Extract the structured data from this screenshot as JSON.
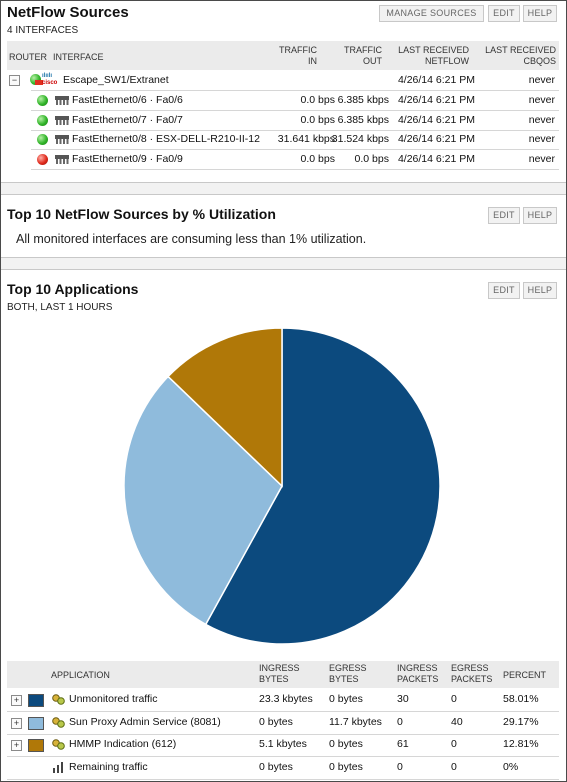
{
  "netflow": {
    "title": "NetFlow Sources",
    "subtitle": "4 INTERFACES",
    "buttons": {
      "manage": "MANAGE SOURCES",
      "edit": "EDIT",
      "help": "HELP"
    },
    "columns": {
      "router": "ROUTER",
      "interface": "INTERFACE",
      "traffic_in": [
        "TRAFFIC",
        "IN"
      ],
      "traffic_out": [
        "TRAFFIC",
        "OUT"
      ],
      "last_netflow": [
        "LAST RECEIVED",
        "NETFLOW"
      ],
      "last_cbqos": [
        "LAST RECEIVED",
        "CBQOS"
      ]
    },
    "node": {
      "vendor": "cisco",
      "label": "Escape_SW1/Extranet",
      "last_netflow": "4/26/14 6:21 PM",
      "last_cbqos": "never"
    },
    "interfaces": [
      {
        "status": "up",
        "label": "FastEthernet0/6 · Fa0/6",
        "in": "0.0 bps",
        "out": "6.385 kbps",
        "netflow": "4/26/14 6:21 PM",
        "cbqos": "never"
      },
      {
        "status": "up",
        "label": "FastEthernet0/7 · Fa0/7",
        "in": "0.0 bps",
        "out": "6.385 kbps",
        "netflow": "4/26/14 6:21 PM",
        "cbqos": "never"
      },
      {
        "status": "up",
        "label": "FastEthernet0/8 · ESX-DELL-R210-II-12",
        "in": "31.641 kbps",
        "out": "31.524 kbps",
        "netflow": "4/26/14 6:21 PM",
        "cbqos": "never"
      },
      {
        "status": "down",
        "label": "FastEthernet0/9 · Fa0/9",
        "in": "0.0 bps",
        "out": "0.0 bps",
        "netflow": "4/26/14 6:21 PM",
        "cbqos": "never"
      }
    ]
  },
  "utilization": {
    "title": "Top 10 NetFlow Sources by % Utilization",
    "buttons": {
      "edit": "EDIT",
      "help": "HELP"
    },
    "message": "All monitored interfaces are consuming less than 1% utilization."
  },
  "apps": {
    "title": "Top 10 Applications",
    "subtitle": "BOTH, LAST 1 HOURS",
    "buttons": {
      "edit": "EDIT",
      "help": "HELP"
    },
    "columns": {
      "application": "APPLICATION",
      "ingress_bytes": [
        "INGRESS",
        "BYTES"
      ],
      "egress_bytes": [
        "EGRESS",
        "BYTES"
      ],
      "ingress_packets": [
        "INGRESS",
        "PACKETS"
      ],
      "egress_packets": [
        "EGRESS",
        "PACKETS"
      ],
      "percent": "PERCENT"
    },
    "rows": [
      {
        "name": "Unmonitored traffic",
        "color": "#0c4a7e",
        "ib": "23.3 kbytes",
        "eb": "0 bytes",
        "ip": "30",
        "ep": "0",
        "pct": "58.01%"
      },
      {
        "name": "Sun Proxy Admin Service (8081)",
        "color": "#8fbbdc",
        "ib": "0 bytes",
        "eb": "11.7 kbytes",
        "ip": "0",
        "ep": "40",
        "pct": "29.17%"
      },
      {
        "name": "HMMP Indication (612)",
        "color": "#b07808",
        "ib": "5.1 kbytes",
        "eb": "0 bytes",
        "ip": "61",
        "ep": "0",
        "pct": "12.81%"
      },
      {
        "name": "Remaining traffic",
        "color": "",
        "ib": "0 bytes",
        "eb": "0 bytes",
        "ip": "0",
        "ep": "0",
        "pct": "0%"
      }
    ]
  },
  "chart_data": {
    "type": "pie",
    "categories": [
      "Unmonitored traffic",
      "Sun Proxy Admin Service (8081)",
      "HMMP Indication (612)"
    ],
    "values": [
      58.01,
      29.17,
      12.81
    ],
    "colors": [
      "#0c4a7e",
      "#8fbbdc",
      "#b07808"
    ]
  }
}
